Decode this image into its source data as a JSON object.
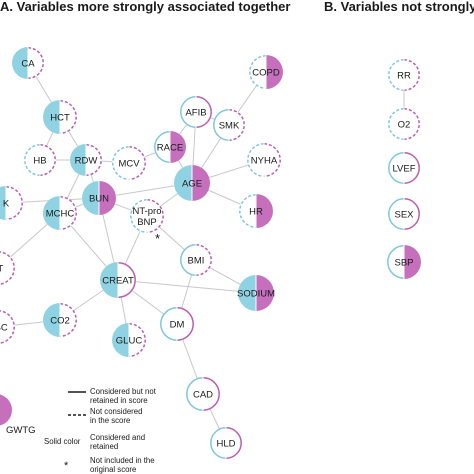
{
  "panel_a": {
    "title": "A. Variables more strongly associated together"
  },
  "panel_b": {
    "title": "B. Variables not strongly asso"
  },
  "colors": {
    "blue": "#8fd3e3",
    "purple": "#c56fbd",
    "edge": "#c8c8c8",
    "ring": "#7fc7da",
    "ring_purple": "#b85fb0"
  },
  "nodes": [
    {
      "id": "ca",
      "label": "CA",
      "left": "solid",
      "right": "dashed"
    },
    {
      "id": "hct",
      "label": "HCT",
      "left": "solid",
      "right": "dashed"
    },
    {
      "id": "hb",
      "label": "HB",
      "left": "dashed",
      "right": "dashed"
    },
    {
      "id": "rdw",
      "label": "RDW",
      "left": "solid",
      "right": "dashed"
    },
    {
      "id": "mcv",
      "label": "MCV",
      "left": "dashed",
      "right": "dashed"
    },
    {
      "id": "race",
      "label": "RACE",
      "left": "line",
      "right": "solid"
    },
    {
      "id": "afib",
      "label": "AFIB",
      "left": "line",
      "right": "line"
    },
    {
      "id": "smk",
      "label": "SMK",
      "left": "line",
      "right": "dashed"
    },
    {
      "id": "copd",
      "label": "COPD",
      "left": "dashed",
      "right": "solid"
    },
    {
      "id": "nyha",
      "label": "NYHA",
      "left": "dashed",
      "right": "dashed"
    },
    {
      "id": "age",
      "label": "AGE",
      "left": "solid",
      "right": "solid"
    },
    {
      "id": "k",
      "label": "K",
      "left": "solid",
      "right": "dashed"
    },
    {
      "id": "mchc",
      "label": "MCHC",
      "left": "solid",
      "right": "dashed"
    },
    {
      "id": "bun",
      "label": "BUN",
      "left": "solid",
      "right": "solid"
    },
    {
      "id": "ntprobnp",
      "label": "NT-pro BNP",
      "left": "dashed",
      "right": "dashed"
    },
    {
      "id": "hr",
      "label": "HR",
      "left": "dashed",
      "right": "solid"
    },
    {
      "id": "bmi",
      "label": "BMI",
      "left": "line",
      "right": "dashed"
    },
    {
      "id": "plt",
      "label": "LT",
      "left": "dashed",
      "right": "dashed"
    },
    {
      "id": "creat",
      "label": "CREAT",
      "left": "solid",
      "right": "line"
    },
    {
      "id": "sodium",
      "label": "SODIUM",
      "left": "solid",
      "right": "solid"
    },
    {
      "id": "wbc",
      "label": "VBC",
      "left": "dashed",
      "right": "dashed"
    },
    {
      "id": "co2",
      "label": "CO2",
      "left": "solid",
      "right": "dashed"
    },
    {
      "id": "dm",
      "label": "DM",
      "left": "line",
      "right": "line"
    },
    {
      "id": "gluc",
      "label": "GLUC",
      "left": "solid",
      "right": "dashed"
    },
    {
      "id": "cad",
      "label": "CAD",
      "left": "line",
      "right": "line"
    },
    {
      "id": "hld",
      "label": "HLD",
      "left": "line",
      "right": "line"
    },
    {
      "id": "rr",
      "label": "RR",
      "left": "dashed",
      "right": "dashed"
    },
    {
      "id": "o2",
      "label": "O2",
      "left": "dashed",
      "right": "dashed"
    },
    {
      "id": "lvef",
      "label": "LVEF",
      "left": "line",
      "right": "line"
    },
    {
      "id": "sex",
      "label": "SEX",
      "left": "line",
      "right": "line"
    },
    {
      "id": "sbp",
      "label": "SBP",
      "left": "line",
      "right": "solid"
    },
    {
      "id": "gwtg",
      "label": "GWTG",
      "left": "none",
      "right": "solid"
    }
  ],
  "edges": [
    [
      "ca",
      "hct"
    ],
    [
      "hct",
      "rdw"
    ],
    [
      "hct",
      "hb"
    ],
    [
      "hb",
      "rdw"
    ],
    [
      "rdw",
      "mcv"
    ],
    [
      "rdw",
      "bun"
    ],
    [
      "rdw",
      "mchc"
    ],
    [
      "mcv",
      "race"
    ],
    [
      "race",
      "afib"
    ],
    [
      "afib",
      "smk"
    ],
    [
      "race",
      "age"
    ],
    [
      "afib",
      "age"
    ],
    [
      "smk",
      "age"
    ],
    [
      "copd",
      "smk"
    ],
    [
      "age",
      "nyha"
    ],
    [
      "age",
      "hr"
    ],
    [
      "age",
      "bun"
    ],
    [
      "age",
      "ntprobnp"
    ],
    [
      "bun",
      "ntprobnp"
    ],
    [
      "bun",
      "k"
    ],
    [
      "bun",
      "mchc"
    ],
    [
      "bun",
      "creat"
    ],
    [
      "ntprobnp",
      "creat"
    ],
    [
      "ntprobnp",
      "bmi"
    ],
    [
      "mchc",
      "plt"
    ],
    [
      "mchc",
      "creat"
    ],
    [
      "creat",
      "co2"
    ],
    [
      "creat",
      "gluc"
    ],
    [
      "creat",
      "dm"
    ],
    [
      "bmi",
      "dm"
    ],
    [
      "bmi",
      "sodium"
    ],
    [
      "creat",
      "sodium"
    ],
    [
      "dm",
      "cad"
    ],
    [
      "cad",
      "hld"
    ],
    [
      "co2",
      "wbc"
    ],
    [
      "plt",
      "wbc"
    ],
    [
      "rr",
      "o2"
    ]
  ],
  "legend": {
    "solid_line": "Considered but not retained in score",
    "dashed_line": "Not considered in the score",
    "solid_color": "Solid color",
    "solid_color_desc": "Considered and retained",
    "asterisk": "*",
    "asterisk_desc": "Not included in the original score"
  },
  "ntprobnp_marker": "*"
}
